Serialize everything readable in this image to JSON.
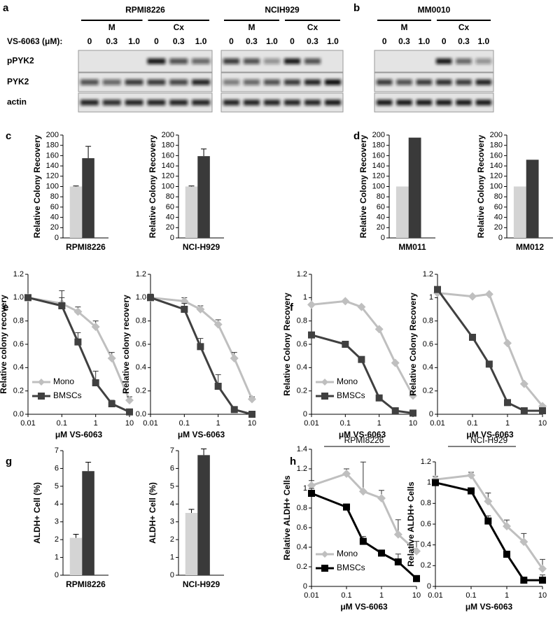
{
  "blots": {
    "panel_a": "a",
    "panel_b": "b",
    "dose_label": "VS-6063 (μM):",
    "rows": [
      "pPYK2",
      "PYK2",
      "actin"
    ],
    "groups": [
      {
        "title": "RPMI8226",
        "conditions": [
          "M",
          "Cx"
        ],
        "doses": [
          "0",
          "0.3",
          "1.0",
          "0",
          "0.3",
          "1.0"
        ]
      },
      {
        "title": "NCIH929",
        "conditions": [
          "M",
          "Cx"
        ],
        "doses": [
          "0",
          "0.3",
          "1.0",
          "0",
          "0.3",
          "1.0"
        ]
      },
      {
        "title": "MM0010",
        "conditions": [
          "M",
          "Cx"
        ],
        "doses": [
          "0",
          "0.3",
          "1.0",
          "0",
          "0.3",
          "1.0"
        ]
      }
    ]
  },
  "chart_data": [
    {
      "type": "bar",
      "panel": "c",
      "ylabel": "Relative Colony Recovery",
      "xlabel": "RPMI8226",
      "values": [
        100,
        155
      ],
      "errors": [
        1,
        23
      ],
      "colors": [
        "#d4d4d4",
        "#3a3a3a"
      ],
      "ylim": [
        0,
        200
      ],
      "yticks": [
        0,
        20,
        40,
        60,
        80,
        100,
        120,
        140,
        160,
        180,
        200
      ]
    },
    {
      "type": "bar",
      "ylabel": "Relative Colony Recovery",
      "xlabel": "NCI-H929",
      "values": [
        100,
        159
      ],
      "errors": [
        1,
        14
      ],
      "colors": [
        "#d4d4d4",
        "#3a3a3a"
      ],
      "ylim": [
        0,
        200
      ],
      "yticks": [
        0,
        20,
        40,
        60,
        80,
        100,
        120,
        140,
        160,
        180,
        200
      ]
    },
    {
      "type": "bar",
      "panel": "d",
      "ylabel": "Relative Colony Recovery",
      "xlabel": "MM011",
      "values": [
        100,
        195
      ],
      "colors": [
        "#d4d4d4",
        "#3a3a3a"
      ],
      "ylim": [
        0,
        200
      ],
      "yticks": [
        0,
        20,
        40,
        60,
        80,
        100,
        120,
        140,
        160,
        180,
        200
      ]
    },
    {
      "type": "bar",
      "ylabel": "Relative Colony Recovery",
      "xlabel": "MM012",
      "values": [
        100,
        152
      ],
      "colors": [
        "#d4d4d4",
        "#3a3a3a"
      ],
      "ylim": [
        0,
        200
      ],
      "yticks": [
        0,
        20,
        40,
        60,
        80,
        100,
        120,
        140,
        160,
        180,
        200
      ]
    },
    {
      "type": "line",
      "panel": "e",
      "xscale": "log",
      "legend": "lower left",
      "ylabel": "Relative colony recovery",
      "xlabel": "μM VS-6063",
      "x": [
        0.01,
        0.1,
        0.3,
        1,
        3,
        10
      ],
      "xlim": [
        0.01,
        10
      ],
      "xticks": [
        0.01,
        0.1,
        1,
        10
      ],
      "ylim": [
        0,
        1.2
      ],
      "yticks": [
        {
          "value": 0,
          "label": "0.0"
        },
        {
          "value": 0.2,
          "label": "0.2"
        },
        {
          "value": 0.4,
          "label": "0.4"
        },
        {
          "value": 0.6,
          "label": "0.6"
        },
        {
          "value": 0.8,
          "label": "0.8"
        },
        {
          "value": 1,
          "label": "1.0"
        },
        {
          "value": 1.2,
          "label": "1.2"
        }
      ],
      "series": [
        {
          "name": "Mono",
          "color": "#bfbfbf",
          "marker": "diamond",
          "values": [
            1.0,
            0.95,
            0.88,
            0.75,
            0.48,
            0.12
          ],
          "errors": [
            0.02,
            0.05,
            0.04,
            0.05,
            0.05,
            0.03
          ]
        },
        {
          "name": "BMSCs",
          "color": "#404040",
          "marker": "square",
          "values": [
            1.0,
            0.93,
            0.62,
            0.27,
            0.09,
            0.02
          ],
          "errors": [
            0.02,
            0.13,
            0.08,
            0.1,
            0.03,
            0.01
          ]
        }
      ]
    },
    {
      "type": "line",
      "xscale": "log",
      "ylabel": "Relative colony recovery",
      "xlabel": "μM VS-6063",
      "x": [
        0.01,
        0.1,
        0.3,
        1,
        3,
        10
      ],
      "xlim": [
        0.01,
        10
      ],
      "xticks": [
        0.01,
        0.1,
        1,
        10
      ],
      "ylim": [
        0,
        1.2
      ],
      "yticks": [
        {
          "value": 0,
          "label": "0.0"
        },
        {
          "value": 0.2,
          "label": "0.2"
        },
        {
          "value": 0.4,
          "label": "0.4"
        },
        {
          "value": 0.6,
          "label": "0.6"
        },
        {
          "value": 0.8,
          "label": "0.8"
        },
        {
          "value": 1,
          "label": "1.0"
        },
        {
          "value": 1.2,
          "label": "1.2"
        }
      ],
      "series": [
        {
          "color": "#bfbfbf",
          "marker": "diamond",
          "values": [
            1.0,
            0.97,
            0.9,
            0.77,
            0.48,
            0.13
          ],
          "errors": [
            0.03,
            0.03,
            0.03,
            0.04,
            0.05,
            0.02
          ]
        },
        {
          "color": "#404040",
          "marker": "square",
          "values": [
            1.0,
            0.9,
            0.58,
            0.24,
            0.04,
            0.0
          ],
          "errors": [
            0.03,
            0.05,
            0.07,
            0.1,
            0.02,
            0.01
          ]
        }
      ]
    },
    {
      "type": "line",
      "panel": "f",
      "xscale": "log",
      "legend": "lower left",
      "ylabel": "Relative Colony Recovery",
      "xlabel": "μM VS-6063",
      "x": [
        0.01,
        0.1,
        0.3,
        1,
        3,
        10
      ],
      "xlim": [
        0.01,
        10
      ],
      "xticks": [
        0.01,
        0.1,
        1,
        10
      ],
      "ylim": [
        0,
        1.2
      ],
      "yticks": [
        0,
        0.2,
        0.4,
        0.6,
        0.8,
        1,
        1.2
      ],
      "series": [
        {
          "name": "Mono",
          "color": "#bfbfbf",
          "marker": "diamond",
          "values": [
            0.94,
            0.97,
            0.92,
            0.73,
            0.44,
            0.16
          ]
        },
        {
          "name": "BMSCs",
          "color": "#404040",
          "marker": "square",
          "values": [
            0.68,
            0.6,
            0.47,
            0.14,
            0.03,
            0.01
          ]
        }
      ]
    },
    {
      "type": "line",
      "xscale": "log",
      "ylabel": "Relative Colony Recovery",
      "xlabel": "μM VS-6063",
      "x": [
        0.01,
        0.1,
        0.3,
        1,
        3,
        10
      ],
      "xlim": [
        0.01,
        10
      ],
      "xticks": [
        0.01,
        0.1,
        1,
        10
      ],
      "ylim": [
        0,
        1.2
      ],
      "yticks": [
        0,
        0.2,
        0.4,
        0.6,
        0.8,
        1,
        1.2
      ],
      "series": [
        {
          "color": "#bfbfbf",
          "marker": "diamond",
          "values": [
            1.04,
            1.01,
            1.03,
            0.61,
            0.26,
            0.07
          ]
        },
        {
          "color": "#404040",
          "marker": "square",
          "values": [
            1.07,
            0.66,
            0.43,
            0.1,
            0.03,
            0.03
          ]
        }
      ]
    },
    {
      "type": "bar",
      "panel": "g",
      "ylabel": "ALDH+ Cell (%)",
      "xlabel": "RPMI8226",
      "values": [
        2.1,
        5.85
      ],
      "errors": [
        0.2,
        0.5
      ],
      "colors": [
        "#d4d4d4",
        "#3a3a3a"
      ],
      "ylim": [
        0,
        7
      ],
      "yticks": [
        0,
        1,
        2,
        3,
        4,
        5,
        6,
        7
      ]
    },
    {
      "type": "bar",
      "ylabel": "ALDH+ Cell (%)",
      "xlabel": "NCI-H929",
      "values": [
        3.5,
        6.75
      ],
      "errors": [
        0.2,
        0.35
      ],
      "colors": [
        "#d4d4d4",
        "#3a3a3a"
      ],
      "ylim": [
        0,
        7
      ],
      "yticks": [
        0,
        1,
        2,
        3,
        4,
        5,
        6,
        7
      ]
    },
    {
      "type": "line",
      "panel": "h",
      "annotation": "RPMI8226",
      "xscale": "log",
      "legend": "lower left",
      "ylabel": "Relative ALDH+ Cells",
      "xlabel": "μM VS-6063",
      "x": [
        0.01,
        0.1,
        0.3,
        1,
        3,
        10
      ],
      "xlim": [
        0.01,
        10
      ],
      "xticks": [
        0.01,
        0.1,
        1,
        10
      ],
      "ylim": [
        0,
        1.4
      ],
      "yticks": [
        0,
        0.2,
        0.4,
        0.6,
        0.8,
        1,
        1.2,
        1.4
      ],
      "series": [
        {
          "name": "Mono",
          "color": "#bfbfbf",
          "marker": "diamond",
          "values": [
            1.03,
            1.15,
            0.97,
            0.9,
            0.53,
            0.36
          ],
          "errors": [
            0.05,
            0.05,
            0.3,
            0.08,
            0.15,
            0.1
          ]
        },
        {
          "name": "BMSCs",
          "color": "#000000",
          "marker": "square",
          "values": [
            0.95,
            0.81,
            0.46,
            0.34,
            0.25,
            0.08
          ],
          "errors": [
            0.05,
            0.03,
            0.05,
            0.03,
            0.08,
            0.02
          ]
        }
      ]
    },
    {
      "type": "line",
      "annotation": "NCI-H929",
      "xscale": "log",
      "ylabel": "Relative ALDH+ Cells",
      "xlabel": "μM VS-6063",
      "x": [
        0.01,
        0.1,
        0.3,
        1,
        3,
        10
      ],
      "xlim": [
        0.01,
        10
      ],
      "xticks": [
        0.01,
        0.1,
        1,
        10
      ],
      "ylim": [
        0,
        1.2
      ],
      "yticks": [
        0,
        0.2,
        0.4,
        0.6,
        0.8,
        1,
        1.2
      ],
      "series": [
        {
          "color": "#bfbfbf",
          "marker": "diamond",
          "values": [
            1.03,
            1.07,
            0.82,
            0.58,
            0.43,
            0.17
          ],
          "errors": [
            0.03,
            0.03,
            0.08,
            0.06,
            0.08,
            0.09
          ]
        },
        {
          "color": "#000000",
          "marker": "square",
          "values": [
            1.0,
            0.92,
            0.63,
            0.31,
            0.06,
            0.06
          ],
          "errors": [
            0.02,
            0.03,
            0.05,
            0.02,
            0.02,
            0.05
          ]
        }
      ]
    }
  ]
}
